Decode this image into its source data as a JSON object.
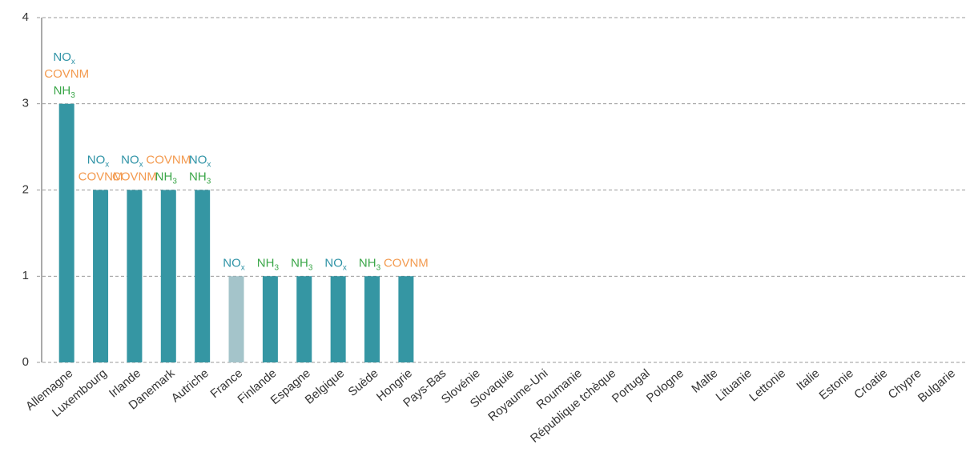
{
  "chart_data": {
    "type": "bar",
    "categories": [
      "Allemagne",
      "Luxembourg",
      "Irlande",
      "Danemark",
      "Autriche",
      "France",
      "Finlande",
      "Espagne",
      "Belgique",
      "Suède",
      "Hongrie",
      "Pays-Bas",
      "Slovénie",
      "Slovaquie",
      "Royaume-Uni",
      "Roumanie",
      "République tchèque",
      "Portugal",
      "Pologne",
      "Malte",
      "Lituanie",
      "Lettonie",
      "Italie",
      "Estonie",
      "Croatie",
      "Chypre",
      "Bulgarie"
    ],
    "values": [
      3,
      2,
      2,
      2,
      2,
      1,
      1,
      1,
      1,
      1,
      1,
      0,
      0,
      0,
      0,
      0,
      0,
      0,
      0,
      0,
      0,
      0,
      0,
      0,
      0,
      0,
      0
    ],
    "colors": [
      "#3596a3",
      "#3596a3",
      "#3596a3",
      "#3596a3",
      "#3596a3",
      "#a4c4ca",
      "#3596a3",
      "#3596a3",
      "#3596a3",
      "#3596a3",
      "#3596a3",
      "#3596a3",
      "#3596a3",
      "#3596a3",
      "#3596a3",
      "#3596a3",
      "#3596a3",
      "#3596a3",
      "#3596a3",
      "#3596a3",
      "#3596a3",
      "#3596a3",
      "#3596a3",
      "#3596a3",
      "#3596a3",
      "#3596a3",
      "#3596a3"
    ],
    "label_colors": {
      "NO": "#2f93a6",
      "COVNM": "#f39a4f",
      "NH": "#3aa648"
    },
    "annotations": [
      [
        {
          "text": "NO",
          "sub": "x"
        },
        {
          "text": "COVNM"
        },
        {
          "text": "NH",
          "sub": "3"
        }
      ],
      [
        {
          "text": "NO",
          "sub": "x"
        },
        {
          "text": "COVNM"
        }
      ],
      [
        {
          "text": "NO",
          "sub": "x"
        },
        {
          "text": "COVNM"
        }
      ],
      [
        {
          "text": "COVNM"
        },
        {
          "text": "NH",
          "sub": "3"
        }
      ],
      [
        {
          "text": "NO",
          "sub": "x"
        },
        {
          "text": "NH",
          "sub": "3"
        }
      ],
      [
        {
          "text": "NO",
          "sub": "x"
        }
      ],
      [
        {
          "text": "NH",
          "sub": "3"
        }
      ],
      [
        {
          "text": "NH",
          "sub": "3"
        }
      ],
      [
        {
          "text": "NO",
          "sub": "x"
        }
      ],
      [
        {
          "text": "NH",
          "sub": "3"
        }
      ],
      [
        {
          "text": "COVNM"
        }
      ],
      [],
      [],
      [],
      [],
      [],
      [],
      [],
      [],
      [],
      [],
      [],
      [],
      [],
      [],
      [],
      []
    ],
    "ylim": [
      0,
      4
    ],
    "yticks": [
      0,
      1,
      2,
      3,
      4
    ],
    "grid": true
  }
}
